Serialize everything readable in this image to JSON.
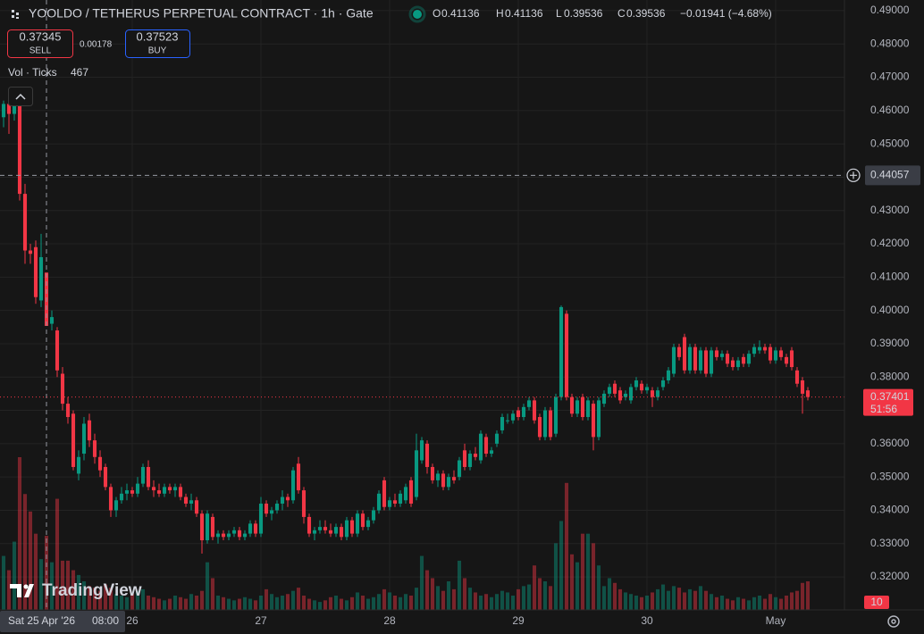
{
  "chart_data": {
    "type": "candlestick",
    "title": "YOOLDO / TETHERUS PERPETUAL CONTRACT · 1h · Gate",
    "ohlc_letters": [
      "O",
      "H",
      "L",
      "C"
    ],
    "change_label": "−0.01941 (−4.68%)",
    "volume_label": "Vol · Ticks",
    "crosshair": {
      "price": 0.44057,
      "date": "Sat 25 Apr '26",
      "time": "08:00"
    },
    "last_price_countdown": "51:56",
    "up_color": "#089981",
    "down_color": "#f23645",
    "grid": true,
    "xlim": [
      -0.667,
      156.833
    ],
    "xticks": [
      {
        "value": 24,
        "label": "26"
      },
      {
        "value": 48,
        "label": "27"
      },
      {
        "value": 72,
        "label": "28"
      },
      {
        "value": 96,
        "label": "29"
      },
      {
        "value": 120,
        "label": "30"
      },
      {
        "value": 144,
        "label": "May"
      }
    ],
    "ylim": [
      0.3101,
      0.4932
    ],
    "yticks": [
      {
        "value": 0.32,
        "label": "0.32000"
      },
      {
        "value": 0.33,
        "label": "0.33000"
      },
      {
        "value": 0.34,
        "label": "0.34000"
      },
      {
        "value": 0.35,
        "label": "0.35000"
      },
      {
        "value": 0.36,
        "label": "0.36000"
      },
      {
        "value": 0.37,
        "label": "0.37000"
      },
      {
        "value": 0.38,
        "label": "0.38000"
      },
      {
        "value": 0.39,
        "label": "0.39000"
      },
      {
        "value": 0.4,
        "label": "0.40000"
      },
      {
        "value": 0.41,
        "label": "0.41000"
      },
      {
        "value": 0.42,
        "label": "0.42000"
      },
      {
        "value": 0.43,
        "label": "0.43000"
      },
      {
        "value": 0.44,
        "label": "0.44000"
      },
      {
        "value": 0.45,
        "label": "0.45000"
      },
      {
        "value": 0.46,
        "label": "0.46000"
      },
      {
        "value": 0.47,
        "label": "0.47000"
      },
      {
        "value": 0.48,
        "label": "0.48000"
      },
      {
        "value": 0.49,
        "label": "0.49000"
      }
    ],
    "ohlc": [
      [
        0.458,
        0.463,
        0.455,
        0.462
      ],
      [
        0.462,
        0.464,
        0.453,
        0.459
      ],
      [
        0.459,
        0.465,
        0.457,
        0.463
      ],
      [
        0.463,
        0.464,
        0.433,
        0.435
      ],
      [
        0.435,
        0.438,
        0.414,
        0.418
      ],
      [
        0.418,
        0.42,
        0.414,
        0.417
      ],
      [
        0.419,
        0.421,
        0.402,
        0.404
      ],
      [
        0.403,
        0.423,
        0.401,
        0.416
      ],
      [
        0.41136,
        0.41136,
        0.39536,
        0.39536
      ],
      [
        0.396,
        0.4,
        0.394,
        0.398
      ],
      [
        0.394,
        0.395,
        0.38,
        0.382
      ],
      [
        0.381,
        0.383,
        0.37,
        0.372
      ],
      [
        0.372,
        0.374,
        0.366,
        0.368
      ],
      [
        0.369,
        0.37,
        0.352,
        0.353
      ],
      [
        0.351,
        0.358,
        0.349,
        0.356
      ],
      [
        0.357,
        0.368,
        0.355,
        0.366
      ],
      [
        0.367,
        0.369,
        0.359,
        0.361
      ],
      [
        0.361,
        0.363,
        0.354,
        0.356
      ],
      [
        0.356,
        0.358,
        0.35,
        0.352
      ],
      [
        0.353,
        0.354,
        0.346,
        0.347
      ],
      [
        0.347,
        0.348,
        0.338,
        0.34
      ],
      [
        0.34,
        0.344,
        0.338,
        0.343
      ],
      [
        0.343,
        0.347,
        0.342,
        0.345
      ],
      [
        0.345,
        0.348,
        0.343,
        0.346
      ],
      [
        0.346,
        0.347,
        0.344,
        0.345
      ],
      [
        0.345,
        0.35,
        0.344,
        0.348
      ],
      [
        0.348,
        0.354,
        0.347,
        0.353
      ],
      [
        0.353,
        0.355,
        0.346,
        0.347
      ],
      [
        0.347,
        0.349,
        0.344,
        0.346
      ],
      [
        0.346,
        0.348,
        0.344,
        0.345
      ],
      [
        0.345,
        0.348,
        0.344,
        0.347
      ],
      [
        0.347,
        0.348,
        0.345,
        0.346
      ],
      [
        0.346,
        0.348,
        0.344,
        0.347
      ],
      [
        0.347,
        0.348,
        0.343,
        0.344
      ],
      [
        0.344,
        0.345,
        0.341,
        0.342
      ],
      [
        0.342,
        0.345,
        0.34,
        0.343
      ],
      [
        0.343,
        0.344,
        0.338,
        0.339
      ],
      [
        0.339,
        0.34,
        0.327,
        0.331
      ],
      [
        0.331,
        0.34,
        0.33,
        0.339
      ],
      [
        0.338,
        0.339,
        0.331,
        0.332
      ],
      [
        0.332,
        0.334,
        0.33,
        0.333
      ],
      [
        0.333,
        0.334,
        0.331,
        0.332
      ],
      [
        0.332,
        0.334,
        0.331,
        0.333
      ],
      [
        0.333,
        0.335,
        0.332,
        0.334
      ],
      [
        0.334,
        0.335,
        0.331,
        0.332
      ],
      [
        0.332,
        0.334,
        0.331,
        0.333
      ],
      [
        0.333,
        0.337,
        0.332,
        0.336
      ],
      [
        0.336,
        0.337,
        0.332,
        0.333
      ],
      [
        0.333,
        0.344,
        0.332,
        0.342
      ],
      [
        0.342,
        0.343,
        0.338,
        0.339
      ],
      [
        0.339,
        0.341,
        0.337,
        0.34
      ],
      [
        0.34,
        0.343,
        0.339,
        0.342
      ],
      [
        0.342,
        0.346,
        0.34,
        0.344
      ],
      [
        0.344,
        0.345,
        0.341,
        0.343
      ],
      [
        0.343,
        0.353,
        0.342,
        0.352
      ],
      [
        0.354,
        0.356,
        0.345,
        0.346
      ],
      [
        0.346,
        0.347,
        0.336,
        0.338
      ],
      [
        0.338,
        0.339,
        0.332,
        0.333
      ],
      [
        0.333,
        0.335,
        0.331,
        0.334
      ],
      [
        0.334,
        0.337,
        0.333,
        0.335
      ],
      [
        0.335,
        0.337,
        0.333,
        0.334
      ],
      [
        0.334,
        0.336,
        0.332,
        0.333
      ],
      [
        0.333,
        0.336,
        0.332,
        0.335
      ],
      [
        0.335,
        0.336,
        0.331,
        0.332
      ],
      [
        0.332,
        0.338,
        0.331,
        0.337
      ],
      [
        0.337,
        0.338,
        0.332,
        0.333
      ],
      [
        0.333,
        0.34,
        0.332,
        0.339
      ],
      [
        0.339,
        0.34,
        0.334,
        0.335
      ],
      [
        0.335,
        0.338,
        0.334,
        0.337
      ],
      [
        0.337,
        0.341,
        0.336,
        0.34
      ],
      [
        0.34,
        0.346,
        0.339,
        0.345
      ],
      [
        0.349,
        0.35,
        0.34,
        0.341
      ],
      [
        0.341,
        0.344,
        0.34,
        0.343
      ],
      [
        0.343,
        0.345,
        0.341,
        0.342
      ],
      [
        0.342,
        0.346,
        0.341,
        0.345
      ],
      [
        0.343,
        0.348,
        0.342,
        0.347
      ],
      [
        0.349,
        0.35,
        0.341,
        0.342
      ],
      [
        0.344,
        0.363,
        0.343,
        0.358
      ],
      [
        0.355,
        0.362,
        0.354,
        0.361
      ],
      [
        0.36,
        0.361,
        0.351,
        0.353
      ],
      [
        0.353,
        0.354,
        0.348,
        0.349
      ],
      [
        0.349,
        0.352,
        0.347,
        0.351
      ],
      [
        0.351,
        0.352,
        0.346,
        0.347
      ],
      [
        0.347,
        0.351,
        0.346,
        0.35
      ],
      [
        0.35,
        0.352,
        0.348,
        0.349
      ],
      [
        0.35,
        0.356,
        0.349,
        0.355
      ],
      [
        0.358,
        0.36,
        0.352,
        0.353
      ],
      [
        0.353,
        0.358,
        0.352,
        0.357
      ],
      [
        0.357,
        0.359,
        0.355,
        0.356
      ],
      [
        0.355,
        0.364,
        0.354,
        0.363
      ],
      [
        0.362,
        0.363,
        0.356,
        0.357
      ],
      [
        0.357,
        0.359,
        0.356,
        0.358
      ],
      [
        0.36,
        0.364,
        0.359,
        0.363
      ],
      [
        0.364,
        0.369,
        0.363,
        0.368
      ],
      [
        0.367,
        0.369,
        0.366,
        0.367
      ],
      [
        0.367,
        0.37,
        0.366,
        0.369
      ],
      [
        0.37,
        0.371,
        0.367,
        0.368
      ],
      [
        0.368,
        0.372,
        0.367,
        0.371
      ],
      [
        0.371,
        0.374,
        0.37,
        0.373
      ],
      [
        0.373,
        0.374,
        0.366,
        0.367
      ],
      [
        0.368,
        0.369,
        0.361,
        0.362
      ],
      [
        0.362,
        0.371,
        0.361,
        0.37
      ],
      [
        0.37,
        0.371,
        0.361,
        0.362
      ],
      [
        0.363,
        0.375,
        0.362,
        0.374
      ],
      [
        0.374,
        0.4015,
        0.373,
        0.401
      ],
      [
        0.399,
        0.4,
        0.373,
        0.374
      ],
      [
        0.374,
        0.375,
        0.368,
        0.369
      ],
      [
        0.369,
        0.374,
        0.368,
        0.373
      ],
      [
        0.374,
        0.375,
        0.367,
        0.368
      ],
      [
        0.368,
        0.374,
        0.367,
        0.373
      ],
      [
        0.372,
        0.373,
        0.358,
        0.362
      ],
      [
        0.362,
        0.374,
        0.361,
        0.373
      ],
      [
        0.372,
        0.376,
        0.371,
        0.375
      ],
      [
        0.375,
        0.378,
        0.374,
        0.377
      ],
      [
        0.378,
        0.379,
        0.374,
        0.375
      ],
      [
        0.376,
        0.377,
        0.372,
        0.373
      ],
      [
        0.374,
        0.376,
        0.373,
        0.375
      ],
      [
        0.373,
        0.378,
        0.372,
        0.377
      ],
      [
        0.377,
        0.38,
        0.376,
        0.379
      ],
      [
        0.378,
        0.379,
        0.375,
        0.376
      ],
      [
        0.376,
        0.378,
        0.375,
        0.377
      ],
      [
        0.376,
        0.377,
        0.371,
        0.374
      ],
      [
        0.374,
        0.377,
        0.373,
        0.376
      ],
      [
        0.377,
        0.38,
        0.376,
        0.379
      ],
      [
        0.379,
        0.383,
        0.378,
        0.382
      ],
      [
        0.381,
        0.39,
        0.38,
        0.389
      ],
      [
        0.389,
        0.39,
        0.385,
        0.386
      ],
      [
        0.392,
        0.393,
        0.381,
        0.382
      ],
      [
        0.382,
        0.39,
        0.381,
        0.389
      ],
      [
        0.389,
        0.39,
        0.381,
        0.382
      ],
      [
        0.382,
        0.389,
        0.381,
        0.388
      ],
      [
        0.388,
        0.389,
        0.38,
        0.381
      ],
      [
        0.381,
        0.389,
        0.38,
        0.388
      ],
      [
        0.388,
        0.389,
        0.385,
        0.386
      ],
      [
        0.386,
        0.388,
        0.385,
        0.387
      ],
      [
        0.387,
        0.388,
        0.383,
        0.384
      ],
      [
        0.385,
        0.386,
        0.382,
        0.383
      ],
      [
        0.383,
        0.386,
        0.382,
        0.385
      ],
      [
        0.386,
        0.387,
        0.383,
        0.384
      ],
      [
        0.384,
        0.388,
        0.383,
        0.387
      ],
      [
        0.387,
        0.39,
        0.386,
        0.389
      ],
      [
        0.388,
        0.391,
        0.387,
        0.389
      ],
      [
        0.389,
        0.39,
        0.387,
        0.388
      ],
      [
        0.389,
        0.39,
        0.384,
        0.385
      ],
      [
        0.385,
        0.389,
        0.384,
        0.388
      ],
      [
        0.388,
        0.389,
        0.385,
        0.386
      ],
      [
        0.386,
        0.387,
        0.383,
        0.384
      ],
      [
        0.388,
        0.389,
        0.382,
        0.383
      ],
      [
        0.382,
        0.383,
        0.377,
        0.378
      ],
      [
        0.379,
        0.38,
        0.369,
        0.375
      ],
      [
        0.376,
        0.377,
        0.373,
        0.37401
      ]
    ],
    "volume": [
      340,
      250,
      430,
      962,
      730,
      620,
      480,
      320,
      467,
      300,
      700,
      310,
      310,
      250,
      220,
      180,
      150,
      140,
      120,
      160,
      140,
      100,
      90,
      80,
      100,
      120,
      130,
      90,
      80,
      70,
      60,
      70,
      90,
      80,
      70,
      100,
      90,
      120,
      300,
      200,
      90,
      80,
      70,
      60,
      70,
      80,
      70,
      60,
      90,
      130,
      100,
      80,
      90,
      100,
      120,
      140,
      90,
      70,
      60,
      50,
      60,
      80,
      90,
      70,
      60,
      80,
      110,
      90,
      70,
      80,
      100,
      130,
      110,
      90,
      80,
      100,
      90,
      140,
      340,
      250,
      200,
      150,
      120,
      180,
      130,
      310,
      200,
      140,
      110,
      90,
      100,
      80,
      100,
      120,
      110,
      90,
      130,
      150,
      160,
      280,
      200,
      180,
      150,
      420,
      560,
      800,
      350,
      300,
      480,
      480,
      420,
      280,
      150,
      200,
      170,
      130,
      110,
      100,
      90,
      80,
      90,
      110,
      130,
      160,
      120,
      150,
      140,
      110,
      130,
      120,
      150,
      120,
      100,
      80,
      90,
      70,
      60,
      80,
      70,
      60,
      80,
      90,
      70,
      100,
      80,
      70,
      90,
      110,
      120,
      170,
      180
    ]
  },
  "trade_panel": {
    "sell_price": 0.37345,
    "sell_label": "SELL",
    "spread": 0.00178,
    "buy_price": 0.37523,
    "buy_label": "BUY"
  },
  "volume_scale_label": "10",
  "brand": "TradingView"
}
